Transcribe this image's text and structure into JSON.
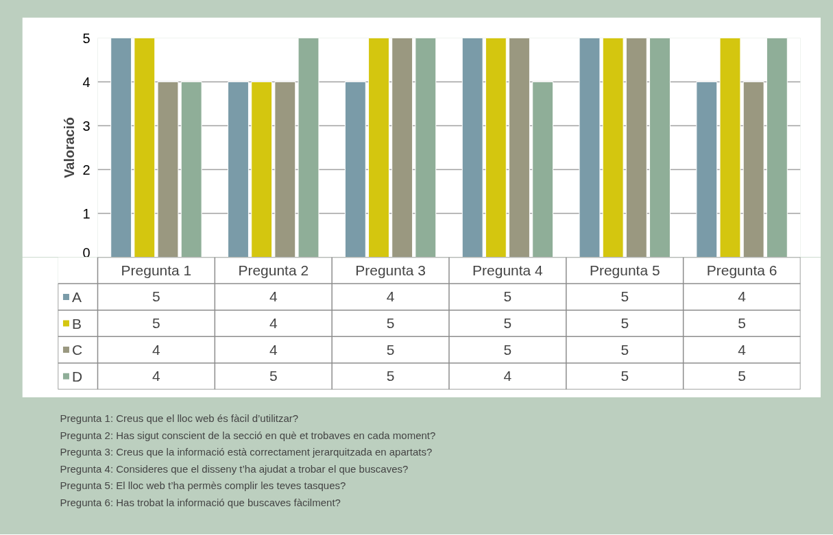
{
  "chart_data": {
    "type": "bar",
    "ylabel": "Valoració",
    "categories": [
      "Pregunta 1",
      "Pregunta 2",
      "Pregunta 3",
      "Pregunta 4",
      "Pregunta 5",
      "Pregunta 6"
    ],
    "series": [
      {
        "name": "A",
        "color": "#7a9ba8",
        "values": [
          5,
          4,
          4,
          5,
          5,
          4
        ]
      },
      {
        "name": "B",
        "color": "#d4c60f",
        "values": [
          5,
          4,
          5,
          5,
          5,
          5
        ]
      },
      {
        "name": "C",
        "color": "#9a9880",
        "values": [
          4,
          4,
          5,
          5,
          5,
          4
        ]
      },
      {
        "name": "D",
        "color": "#8fae98",
        "values": [
          4,
          5,
          5,
          4,
          5,
          5
        ]
      }
    ],
    "ylim": [
      0,
      5
    ],
    "yticks": [
      0,
      1,
      2,
      3,
      4,
      5
    ],
    "grid": "y",
    "data_labels": true,
    "legend": "bottom",
    "annotations": [
      "Pregunta 1: Creus que el lloc web és fàcil d’utilitzar?",
      "Pregunta 2: Has sigut conscient de la secció en què et trobaves en cada moment?",
      "Pregunta 3: Creus que la informació està correctament jerarquitzada en apartats?",
      "Pregunta 4: Consideres que el disseny t’ha ajudat a trobar el que buscaves?",
      "Pregunta 5: El lloc web t’ha permès complir les teves tasques?",
      "Pregunta 6: Has trobat la informació que buscaves fàcilment?"
    ]
  }
}
